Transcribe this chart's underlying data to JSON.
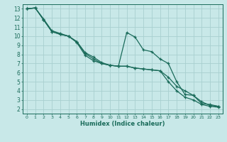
{
  "xlabel": "Humidex (Indice chaleur)",
  "bg_color": "#c8e8e8",
  "grid_color": "#a8d0d0",
  "line_color": "#1a6b5a",
  "xlim": [
    -0.5,
    23.5
  ],
  "ylim": [
    1.5,
    13.5
  ],
  "xticks": [
    0,
    1,
    2,
    3,
    4,
    5,
    6,
    7,
    8,
    9,
    10,
    11,
    12,
    13,
    14,
    15,
    16,
    17,
    18,
    19,
    20,
    21,
    22,
    23
  ],
  "yticks": [
    2,
    3,
    4,
    5,
    6,
    7,
    8,
    9,
    10,
    11,
    12,
    13
  ],
  "series": [
    {
      "x": [
        0,
        1,
        2,
        3,
        4,
        5,
        6,
        7,
        8,
        9,
        10,
        11,
        12,
        13,
        14,
        15,
        16,
        17,
        18,
        19,
        20,
        21,
        22,
        23
      ],
      "y": [
        13.0,
        13.1,
        11.8,
        10.5,
        10.2,
        10.0,
        9.4,
        8.1,
        7.5,
        7.0,
        6.8,
        6.7,
        10.4,
        9.9,
        8.5,
        8.3,
        7.5,
        7.0,
        5.0,
        3.6,
        3.5,
        2.6,
        2.5,
        2.3
      ]
    },
    {
      "x": [
        0,
        1,
        2,
        3,
        4,
        5,
        6,
        7,
        8,
        9,
        10,
        11,
        12,
        13,
        14,
        15,
        16,
        17,
        18,
        19,
        20,
        21,
        22,
        23
      ],
      "y": [
        13.0,
        13.1,
        11.8,
        10.5,
        10.2,
        10.0,
        9.4,
        8.2,
        7.7,
        7.1,
        6.8,
        6.7,
        6.7,
        6.5,
        6.4,
        6.3,
        6.2,
        5.5,
        4.5,
        4.0,
        3.5,
        2.8,
        2.4,
        2.3
      ]
    },
    {
      "x": [
        0,
        1,
        2,
        3,
        4,
        5,
        6,
        7,
        8,
        9,
        10,
        11,
        12,
        13,
        14,
        15,
        16,
        17,
        18,
        19,
        20,
        21,
        22,
        23
      ],
      "y": [
        13.0,
        13.1,
        11.9,
        10.6,
        10.3,
        10.0,
        9.3,
        7.9,
        7.3,
        7.0,
        6.8,
        6.7,
        6.7,
        6.5,
        6.4,
        6.3,
        6.2,
        5.0,
        4.0,
        3.3,
        3.0,
        2.5,
        2.3,
        2.2
      ]
    }
  ]
}
